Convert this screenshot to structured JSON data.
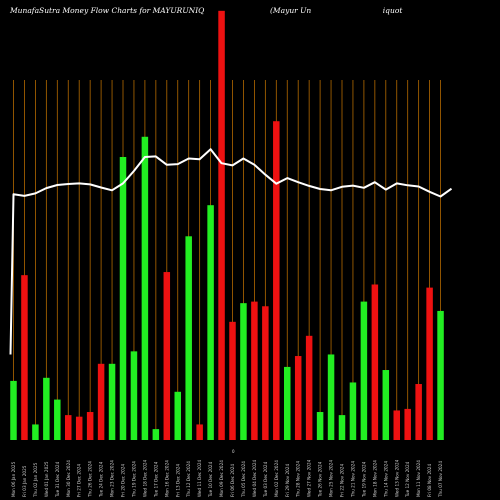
{
  "chart_data": {
    "type": "bar",
    "title_left": "MunafaSutra  Money Flow  Charts for MAYURUNIQ",
    "title_right": "(Mayur Un                              iquot",
    "x_mid_label": "0",
    "grid": true,
    "colors": {
      "background": "#000000",
      "grid": "#b46a00",
      "up": "#22ee22",
      "down": "#ee1111",
      "line": "#ffffff"
    },
    "bar_scale_max": 100,
    "line_scale_max": 100,
    "bars": [
      {
        "label": "Mon 06 Jan 2025",
        "value": 19,
        "dir": "up"
      },
      {
        "label": "Fri 03 Jan 2025",
        "value": 53,
        "dir": "down"
      },
      {
        "label": "Thu 02 Jan 2025",
        "value": 5,
        "dir": "up"
      },
      {
        "label": "Wed 01 Jan 2025",
        "value": 20,
        "dir": "up"
      },
      {
        "label": "Tue 31 Dec 2024",
        "value": 13,
        "dir": "up"
      },
      {
        "label": "Mon 30 Dec 2024",
        "value": 8,
        "dir": "down"
      },
      {
        "label": "Fri 27 Dec 2024",
        "value": 7.5,
        "dir": "down"
      },
      {
        "label": "Thu 26 Dec 2024",
        "value": 9,
        "dir": "down"
      },
      {
        "label": "Tue 24 Dec 2024",
        "value": 24.5,
        "dir": "down"
      },
      {
        "label": "Mon 23 Dec 2024",
        "value": 24.5,
        "dir": "up"
      },
      {
        "label": "Fri 20 Dec 2024",
        "value": 91,
        "dir": "up"
      },
      {
        "label": "Thu 19 Dec 2024",
        "value": 28.5,
        "dir": "up"
      },
      {
        "label": "Wed 18 Dec 2024",
        "value": 97.5,
        "dir": "up"
      },
      {
        "label": "Tue 17 Dec 2024",
        "value": 3.5,
        "dir": "up"
      },
      {
        "label": "Mon 16 Dec 2024",
        "value": 54,
        "dir": "down"
      },
      {
        "label": "Fri 13 Dec 2024",
        "value": 15.5,
        "dir": "up"
      },
      {
        "label": "Thu 12 Dec 2024",
        "value": 65.5,
        "dir": "up"
      },
      {
        "label": "Wed 11 Dec 2024",
        "value": 5,
        "dir": "down"
      },
      {
        "label": "Tue 10 Dec 2024",
        "value": 75.5,
        "dir": "up"
      },
      {
        "label": "Mon 09 Dec 2024",
        "value": 138,
        "dir": "down"
      },
      {
        "label": "Fri 06 Dec 2024",
        "value": 38,
        "dir": "down"
      },
      {
        "label": "Thu 05 Dec 2024",
        "value": 44,
        "dir": "up"
      },
      {
        "label": "Wed 04 Dec 2024",
        "value": 44.5,
        "dir": "down"
      },
      {
        "label": "Tue 03 Dec 2024",
        "value": 43,
        "dir": "down"
      },
      {
        "label": "Mon 02 Dec 2024",
        "value": 102.5,
        "dir": "down"
      },
      {
        "label": "Fri 29 Nov 2024",
        "value": 23.5,
        "dir": "up"
      },
      {
        "label": "Thu 28 Nov 2024",
        "value": 27,
        "dir": "down"
      },
      {
        "label": "Wed 27 Nov 2024",
        "value": 33.5,
        "dir": "down"
      },
      {
        "label": "Tue 26 Nov 2024",
        "value": 9,
        "dir": "up"
      },
      {
        "label": "Mon 25 Nov 2024",
        "value": 27.5,
        "dir": "up"
      },
      {
        "label": "Fri 22 Nov 2024",
        "value": 8,
        "dir": "up"
      },
      {
        "label": "Thu 21 Nov 2024",
        "value": 18.5,
        "dir": "up"
      },
      {
        "label": "Tue 19 Nov 2024",
        "value": 44.5,
        "dir": "up"
      },
      {
        "label": "Mon 18 Nov 2024",
        "value": 50,
        "dir": "down"
      },
      {
        "label": "Thu 14 Nov 2024",
        "value": 22.5,
        "dir": "up"
      },
      {
        "label": "Wed 13 Nov 2024",
        "value": 9.5,
        "dir": "down"
      },
      {
        "label": "Tue 12 Nov 2024",
        "value": 10,
        "dir": "down"
      },
      {
        "label": "Mon 11 Nov 2024",
        "value": 18,
        "dir": "down"
      },
      {
        "label": "Fri 08 Nov 2024",
        "value": 49,
        "dir": "down"
      },
      {
        "label": "Thu 07 Nov 2024",
        "value": 41.5,
        "dir": "up"
      }
    ],
    "line_values": [
      79,
      78.5,
      79.3,
      81,
      82,
      82.3,
      82.5,
      82.2,
      81.2,
      80.3,
      82.5,
      86.5,
      91,
      91.2,
      88.5,
      88.7,
      90.5,
      90.3,
      93.5,
      89,
      88.3,
      90.5,
      88.5,
      85.3,
      82.4,
      84.2,
      82.9,
      81.7,
      80.7,
      80.3,
      81.4,
      81.8,
      81.1,
      82.9,
      80.5,
      82.5,
      81.9,
      81.5,
      79.8,
      78.3,
      80.8
    ],
    "line_extra_start": 27.5
  }
}
